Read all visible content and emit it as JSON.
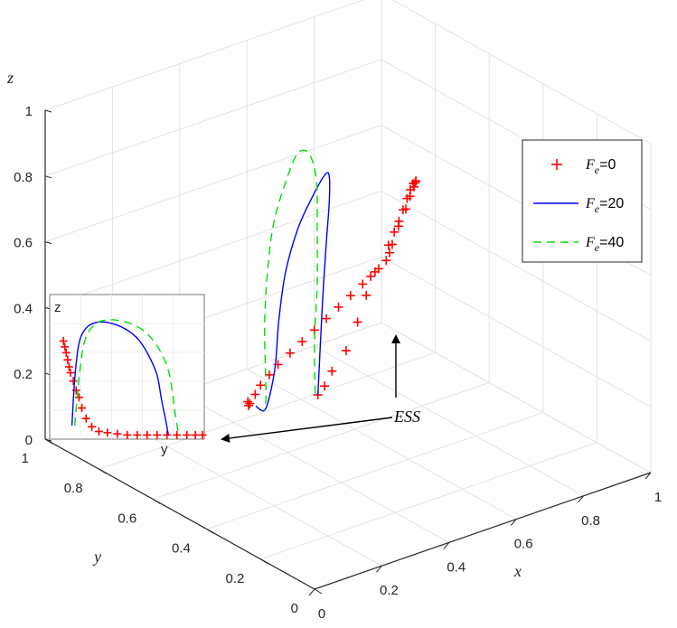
{
  "chart_data": {
    "type": "line3d",
    "xlabel": "x",
    "ylabel": "y",
    "zlabel": "z",
    "xlim": [
      0,
      1
    ],
    "ylim": [
      0,
      1
    ],
    "zlim": [
      0,
      1
    ],
    "x_ticks": [
      "0",
      "0.2",
      "0.4",
      "0.6",
      "0.8",
      "1"
    ],
    "y_ticks": [
      "0",
      "0.2",
      "0.4",
      "0.6",
      "0.8",
      "1"
    ],
    "z_ticks": [
      "0",
      "0.2",
      "0.4",
      "0.6",
      "0.8",
      "1"
    ],
    "grid": true,
    "legend_position": "top-right",
    "series": [
      {
        "name": "F_e=0",
        "legend_symbol": "F",
        "legend_subscript": "e",
        "legend_suffix": "=0",
        "color": "#ff0000",
        "style": "plus-markers",
        "points": [
          [
            0.05,
            0.05,
            0.55
          ],
          [
            0.07,
            0.05,
            0.57
          ],
          [
            0.1,
            0.06,
            0.6
          ],
          [
            0.15,
            0.07,
            0.64
          ],
          [
            0.2,
            0.09,
            0.7
          ],
          [
            0.25,
            0.12,
            0.75
          ],
          [
            0.3,
            0.15,
            0.79
          ],
          [
            0.38,
            0.2,
            0.82
          ],
          [
            0.45,
            0.25,
            0.83
          ],
          [
            0.52,
            0.31,
            0.83
          ],
          [
            0.58,
            0.37,
            0.82
          ],
          [
            0.64,
            0.43,
            0.8
          ],
          [
            0.7,
            0.5,
            0.76
          ],
          [
            0.75,
            0.56,
            0.72
          ],
          [
            0.79,
            0.62,
            0.67
          ],
          [
            0.83,
            0.68,
            0.61
          ],
          [
            0.86,
            0.73,
            0.55
          ],
          [
            0.88,
            0.77,
            0.49
          ],
          [
            0.9,
            0.81,
            0.43
          ],
          [
            0.91,
            0.84,
            0.38
          ],
          [
            0.92,
            0.86,
            0.33
          ],
          [
            0.92,
            0.87,
            0.3
          ],
          [
            0.91,
            0.87,
            0.28
          ],
          [
            0.88,
            0.86,
            0.27
          ],
          [
            0.84,
            0.84,
            0.27
          ],
          [
            0.8,
            0.82,
            0.27
          ],
          [
            0.74,
            0.79,
            0.27
          ],
          [
            0.68,
            0.76,
            0.27
          ],
          [
            0.62,
            0.73,
            0.27
          ],
          [
            0.56,
            0.7,
            0.27
          ],
          [
            0.5,
            0.67,
            0.27
          ],
          [
            0.44,
            0.64,
            0.27
          ],
          [
            0.38,
            0.61,
            0.27
          ],
          [
            0.33,
            0.58,
            0.27
          ],
          [
            0.28,
            0.55,
            0.27
          ],
          [
            0.24,
            0.52,
            0.27
          ],
          [
            0.2,
            0.49,
            0.27
          ],
          [
            0.18,
            0.47,
            0.28
          ],
          [
            0.17,
            0.46,
            0.3
          ]
        ]
      },
      {
        "name": "F_e=20",
        "legend_symbol": "F",
        "legend_subscript": "e",
        "legend_suffix": "=20",
        "color": "#0000ff",
        "style": "solid",
        "points": [
          [
            0.05,
            0.05,
            0.55
          ],
          [
            0.08,
            0.08,
            0.65
          ],
          [
            0.12,
            0.12,
            0.78
          ],
          [
            0.17,
            0.17,
            0.9
          ],
          [
            0.22,
            0.22,
            1.0
          ],
          [
            0.26,
            0.27,
            1.04
          ],
          [
            0.28,
            0.31,
            1.02
          ],
          [
            0.27,
            0.34,
            0.95
          ],
          [
            0.24,
            0.36,
            0.85
          ],
          [
            0.21,
            0.37,
            0.72
          ],
          [
            0.19,
            0.37,
            0.58
          ],
          [
            0.18,
            0.37,
            0.45
          ],
          [
            0.17,
            0.38,
            0.35
          ],
          [
            0.17,
            0.4,
            0.3
          ],
          [
            0.17,
            0.43,
            0.3
          ]
        ]
      },
      {
        "name": "F_e=40",
        "legend_symbol": "F",
        "legend_subscript": "e",
        "legend_suffix": "=40",
        "color": "#00dd00",
        "style": "dashed",
        "points": [
          [
            0.05,
            0.06,
            0.55
          ],
          [
            0.08,
            0.1,
            0.68
          ],
          [
            0.12,
            0.14,
            0.82
          ],
          [
            0.16,
            0.19,
            0.96
          ],
          [
            0.19,
            0.23,
            1.07
          ],
          [
            0.2,
            0.27,
            1.13
          ],
          [
            0.19,
            0.3,
            1.12
          ],
          [
            0.17,
            0.32,
            1.03
          ],
          [
            0.15,
            0.34,
            0.9
          ],
          [
            0.14,
            0.35,
            0.75
          ],
          [
            0.14,
            0.36,
            0.6
          ],
          [
            0.15,
            0.37,
            0.46
          ],
          [
            0.16,
            0.38,
            0.35
          ],
          [
            0.17,
            0.4,
            0.3
          ]
        ]
      }
    ],
    "annotations": [
      {
        "text": "ESS",
        "type": "arrow-label"
      }
    ],
    "inset": {
      "ylabel": "z",
      "xlabel": "y",
      "series": [
        {
          "name": "F_e=0",
          "color": "#ff0000",
          "style": "plus-markers",
          "points": [
            [
              0.02,
              0.82
            ],
            [
              0.03,
              0.77
            ],
            [
              0.04,
              0.72
            ],
            [
              0.05,
              0.66
            ],
            [
              0.06,
              0.6
            ],
            [
              0.07,
              0.55
            ],
            [
              0.09,
              0.48
            ],
            [
              0.11,
              0.4
            ],
            [
              0.13,
              0.34
            ],
            [
              0.15,
              0.25
            ],
            [
              0.18,
              0.16
            ],
            [
              0.22,
              0.09
            ],
            [
              0.27,
              0.05
            ],
            [
              0.33,
              0.04
            ],
            [
              0.4,
              0.03
            ],
            [
              0.47,
              0.02
            ],
            [
              0.54,
              0.02
            ],
            [
              0.61,
              0.02
            ],
            [
              0.68,
              0.02
            ],
            [
              0.75,
              0.02
            ],
            [
              0.82,
              0.02
            ],
            [
              0.89,
              0.02
            ],
            [
              0.95,
              0.02
            ],
            [
              1.0,
              0.02
            ]
          ]
        },
        {
          "name": "F_e=20",
          "color": "#0000ff",
          "style": "solid",
          "points": [
            [
              0.08,
              0.1
            ],
            [
              0.1,
              0.5
            ],
            [
              0.13,
              0.8
            ],
            [
              0.18,
              0.93
            ],
            [
              0.26,
              0.98
            ],
            [
              0.36,
              0.97
            ],
            [
              0.46,
              0.92
            ],
            [
              0.55,
              0.83
            ],
            [
              0.62,
              0.7
            ],
            [
              0.68,
              0.53
            ],
            [
              0.71,
              0.33
            ],
            [
              0.74,
              0.15
            ],
            [
              0.76,
              0.02
            ]
          ]
        },
        {
          "name": "F_e=40",
          "color": "#00dd00",
          "style": "dashed",
          "points": [
            [
              0.1,
              0.1
            ],
            [
              0.13,
              0.5
            ],
            [
              0.17,
              0.82
            ],
            [
              0.24,
              0.96
            ],
            [
              0.33,
              1.0
            ],
            [
              0.43,
              0.99
            ],
            [
              0.53,
              0.95
            ],
            [
              0.62,
              0.87
            ],
            [
              0.7,
              0.74
            ],
            [
              0.76,
              0.57
            ],
            [
              0.79,
              0.37
            ],
            [
              0.81,
              0.18
            ],
            [
              0.83,
              0.04
            ]
          ]
        }
      ]
    }
  }
}
